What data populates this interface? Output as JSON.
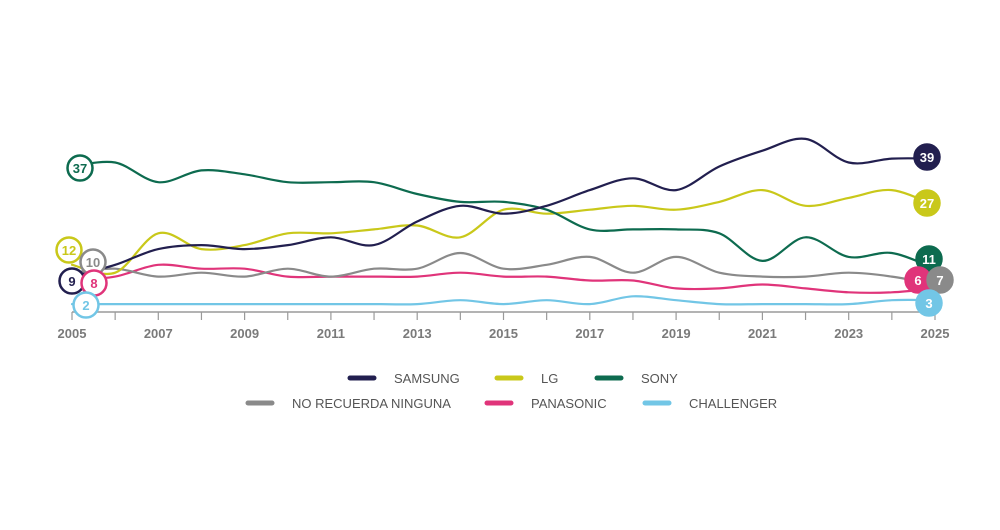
{
  "chart_data": {
    "type": "line",
    "title": "",
    "xlabel": "",
    "ylabel": "",
    "xlim": [
      2005,
      2025
    ],
    "ylim": [
      0,
      45
    ],
    "grid": false,
    "legend_position": "bottom-center",
    "x_ticks": [
      "2005",
      "2007",
      "2009",
      "2011",
      "2013",
      "2015",
      "2017",
      "2019",
      "2021",
      "2023",
      "2025"
    ],
    "x": [
      2005,
      2006,
      2007,
      2008,
      2009,
      2010,
      2011,
      2012,
      2013,
      2014,
      2015,
      2016,
      2017,
      2018,
      2019,
      2020,
      2021,
      2022,
      2023,
      2024,
      2025
    ],
    "series": [
      {
        "name": "SAMSUNG",
        "color": "#221f4f",
        "values": [
          9,
          12,
          16,
          17,
          16,
          17,
          19,
          17,
          23,
          27,
          25,
          27,
          31,
          34,
          31,
          37,
          41,
          44,
          38,
          39,
          39
        ],
        "start_label": "9",
        "end_label": "39"
      },
      {
        "name": "LG",
        "color": "#c9c81a",
        "values": [
          12,
          10,
          20,
          16,
          17,
          20,
          20,
          21,
          22,
          19,
          26,
          25,
          26,
          27,
          26,
          28,
          31,
          27,
          29,
          31,
          27
        ],
        "start_label": "12",
        "end_label": "27"
      },
      {
        "name": "SONY",
        "color": "#0d6b4f",
        "values": [
          37,
          38,
          33,
          36,
          35,
          33,
          33,
          33,
          30,
          28,
          28,
          26,
          21,
          21,
          21,
          20,
          13,
          19,
          14,
          15,
          11
        ],
        "start_label": "37",
        "end_label": "11"
      },
      {
        "name": "NO RECUERDA NINGUNA",
        "color": "#8a8a8a",
        "values": [
          10,
          11,
          9,
          10,
          9,
          11,
          9,
          11,
          11,
          15,
          11,
          12,
          14,
          10,
          14,
          10,
          9,
          9,
          10,
          9,
          7
        ],
        "start_label": "10",
        "end_label": "7"
      },
      {
        "name": "PANASONIC",
        "color": "#e0347a",
        "values": [
          8,
          9,
          12,
          11,
          11,
          9,
          9,
          9,
          9,
          10,
          9,
          9,
          8,
          8,
          6,
          6,
          7,
          6,
          5,
          5,
          6
        ],
        "start_label": "8",
        "end_label": "6"
      },
      {
        "name": "CHALLENGER",
        "color": "#72c6e6",
        "values": [
          2,
          2,
          2,
          2,
          2,
          2,
          2,
          2,
          2,
          3,
          2,
          3,
          2,
          4,
          3,
          2,
          2,
          2,
          2,
          3,
          3
        ],
        "start_label": "2",
        "end_label": "3"
      }
    ]
  }
}
